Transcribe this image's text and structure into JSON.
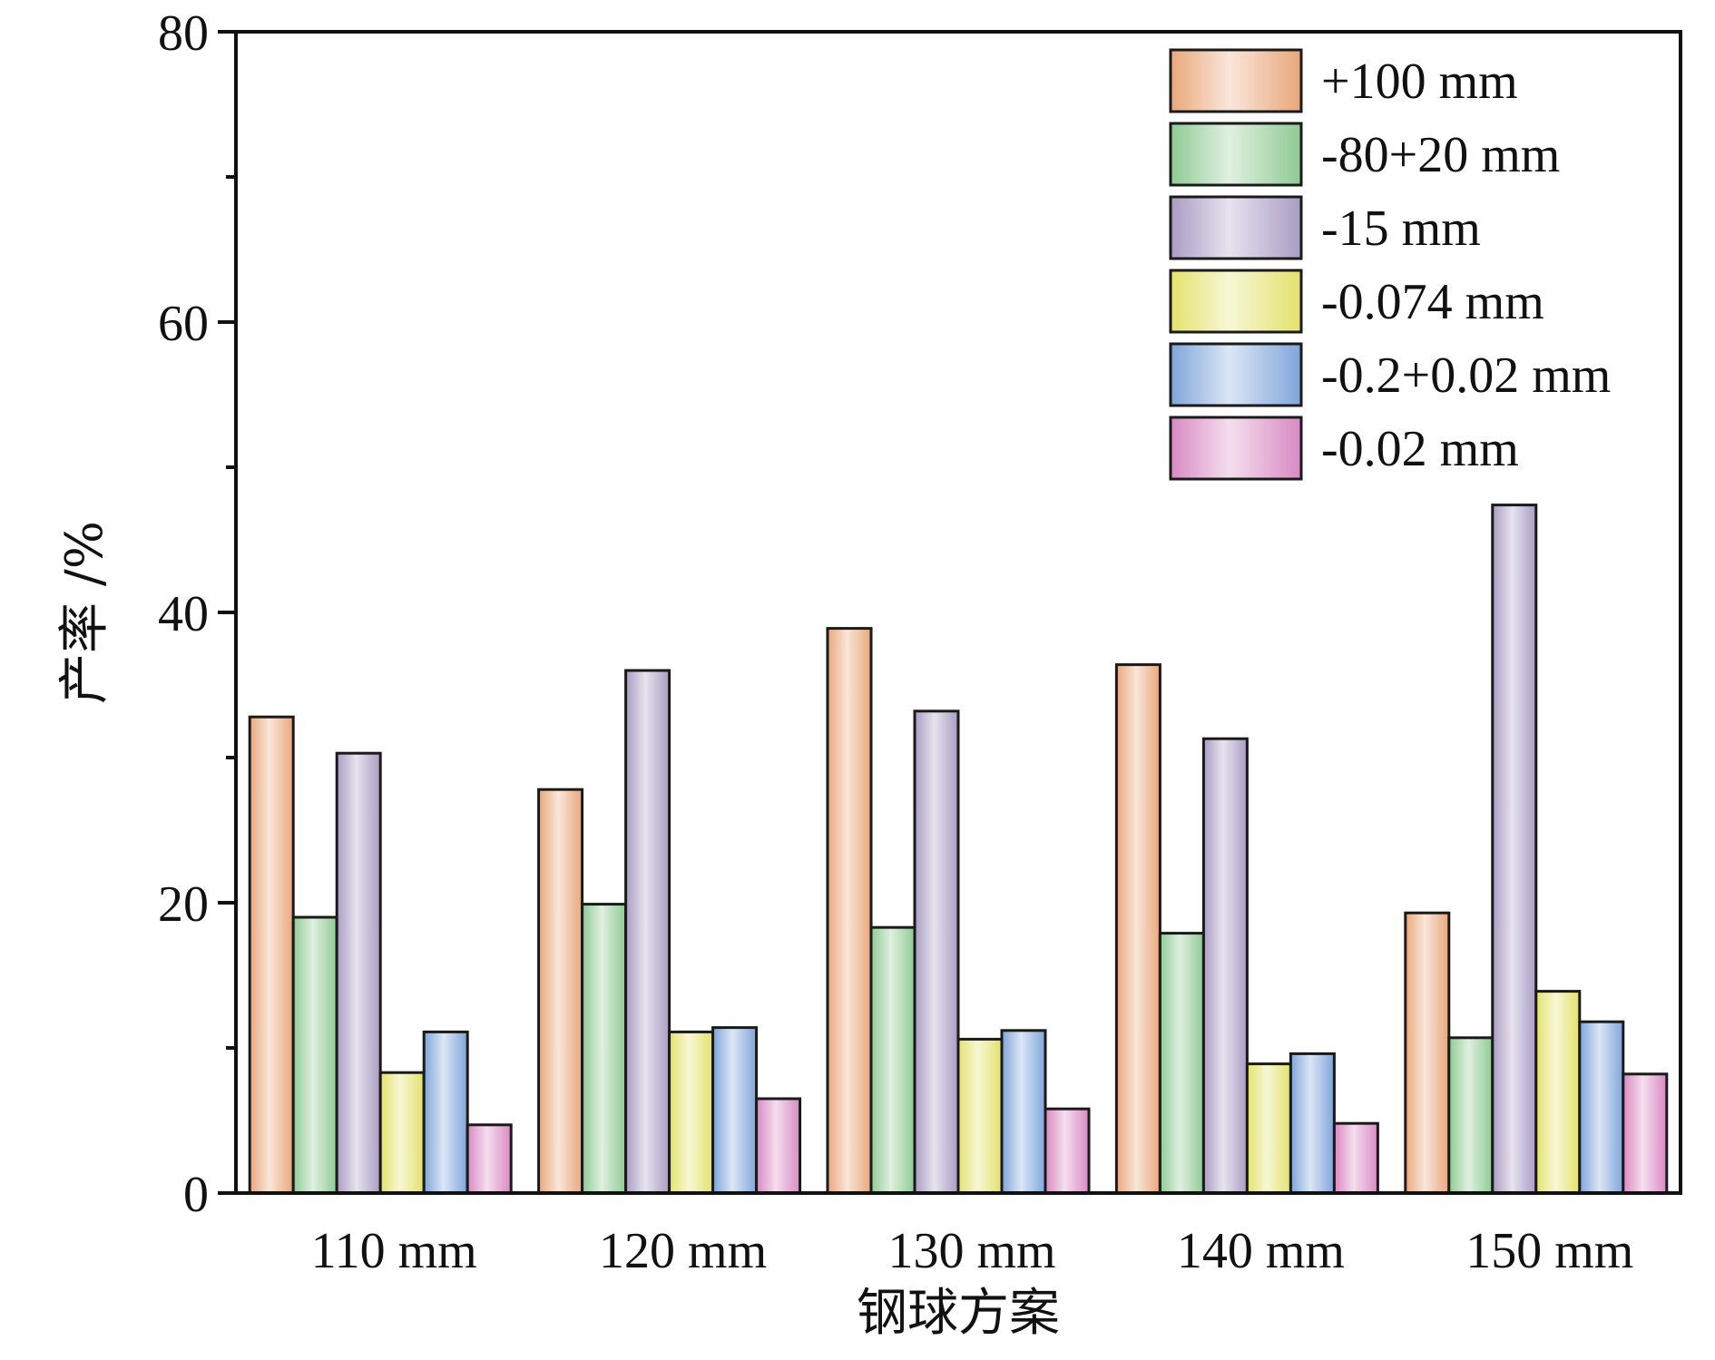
{
  "chart_data": {
    "type": "bar",
    "xlabel": "钢球方案",
    "ylabel": "产率 /%",
    "ylim": [
      0,
      80
    ],
    "yticks": [
      0,
      20,
      40,
      60,
      80
    ],
    "grid": false,
    "legend_position": "top-right",
    "categories": [
      "110 mm",
      "120 mm",
      "130 mm",
      "140 mm",
      "150 mm"
    ],
    "series": [
      {
        "name": "+100 mm",
        "color": "#e9a77a",
        "values": [
          32.8,
          27.8,
          38.9,
          36.4,
          19.3
        ]
      },
      {
        "name": "-80+20 mm",
        "color": "#8fca94",
        "values": [
          19.0,
          19.9,
          18.3,
          17.9,
          10.7
        ]
      },
      {
        "name": "-15 mm",
        "color": "#a99cc3",
        "values": [
          30.3,
          36.0,
          33.2,
          31.3,
          47.4
        ]
      },
      {
        "name": "-0.074 mm",
        "color": "#e4e26c",
        "values": [
          8.3,
          11.1,
          10.6,
          8.9,
          13.9
        ]
      },
      {
        "name": "-0.2+0.02 mm",
        "color": "#7fa5da",
        "values": [
          11.1,
          11.4,
          11.2,
          9.6,
          11.8
        ]
      },
      {
        "name": "-0.02 mm",
        "color": "#d989c3",
        "values": [
          4.7,
          6.5,
          5.8,
          4.8,
          8.2
        ]
      }
    ]
  }
}
